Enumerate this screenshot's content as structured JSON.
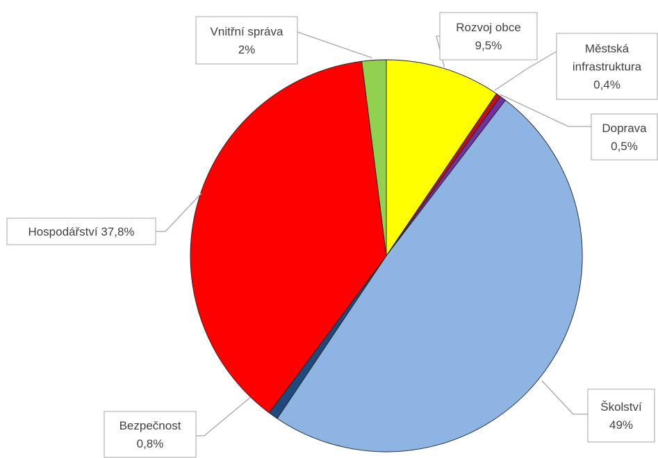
{
  "chart_data": {
    "type": "pie",
    "slices": [
      {
        "name": "Rozvoj obce",
        "value_label": "9,5%",
        "value": 9.5,
        "color": "#ffff00"
      },
      {
        "name": "Městská infrastruktura",
        "value_label": "0,4%",
        "value": 0.4,
        "color": "#c0111f"
      },
      {
        "name": "Doprava",
        "value_label": "0,5%",
        "value": 0.5,
        "color": "#7030a0"
      },
      {
        "name": "Školství",
        "value_label": "49%",
        "value": 49,
        "color": "#8eb4e3"
      },
      {
        "name": "Bezpečnost",
        "value_label": "0,8%",
        "value": 0.8,
        "color": "#1f497d"
      },
      {
        "name": "Hospodářství",
        "value_label": "37,8%",
        "value": 37.8,
        "color": "#ff0000"
      },
      {
        "name": "Vnitřní správa",
        "value_label": "2%",
        "value": 2,
        "color": "#92d050"
      }
    ],
    "labels": [
      {
        "lines": [
          "Rozvoj obce",
          "9,5%"
        ]
      },
      {
        "lines": [
          "Městská",
          "infrastruktura",
          "0,4%"
        ]
      },
      {
        "lines": [
          "Doprava",
          "0,5%"
        ]
      },
      {
        "lines": [
          "Školství",
          "49%"
        ]
      },
      {
        "lines": [
          "Bezpečnost",
          "0,8%"
        ]
      },
      {
        "lines": [
          "Hospodářství  37,8%"
        ]
      },
      {
        "lines": [
          "Vnitřní správa",
          "2%"
        ]
      }
    ]
  }
}
